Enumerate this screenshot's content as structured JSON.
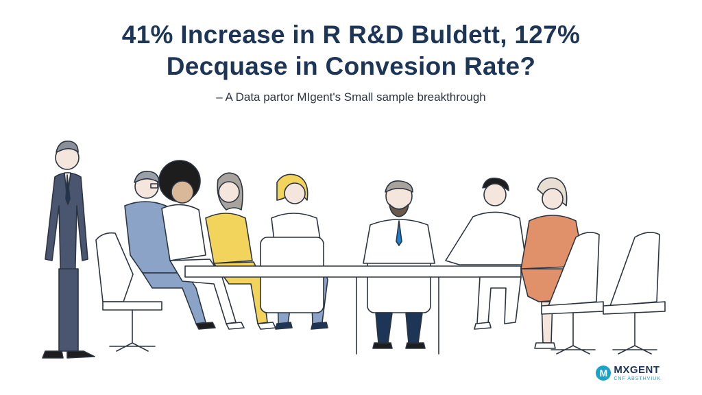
{
  "headline": {
    "line1": "41% Increase in R R&D Buldett, 127%",
    "line2": "Decquase in Convesion Rate?"
  },
  "subheadline": "– A Data partor MIgent's Small sample breakthrough",
  "logo": {
    "mark": "M",
    "word": "MXGENT",
    "tagline": "CNF ABSTHVIUK"
  },
  "colors": {
    "navy": "#1d3557",
    "suit_gray": "#4a5570",
    "blazer_blue": "#8aa3c6",
    "shirt_yellow": "#f2d45c",
    "blazer_orange": "#e1916a",
    "tie_blue": "#1f7fd1",
    "accent_teal": "#1aa3c8",
    "line": "#2b3440"
  }
}
